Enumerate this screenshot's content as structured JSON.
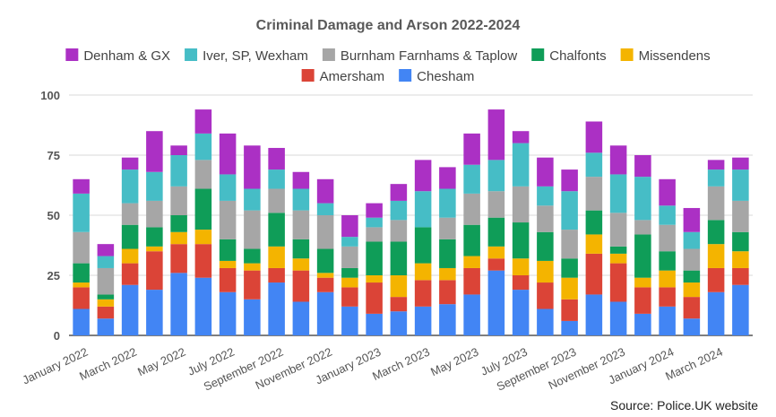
{
  "chart_data": {
    "type": "bar",
    "stacked": true,
    "title": "Criminal Damage and Arson  2022-2024",
    "source_note": "Source: Police.UK website",
    "xlabel": "",
    "ylabel": "",
    "ylim": [
      0,
      100
    ],
    "yticks": [
      0,
      25,
      50,
      75,
      100
    ],
    "grid": true,
    "legend_position": "top",
    "categories": [
      "Jan 2022",
      "Feb 2022",
      "Mar 2022",
      "Apr 2022",
      "May 2022",
      "Jun 2022",
      "Jul 2022",
      "Aug 2022",
      "Sep 2022",
      "Oct 2022",
      "Nov 2022",
      "Dec 2022",
      "Jan 2023",
      "Feb 2023",
      "Mar 2023",
      "Apr 2023",
      "May 2023",
      "Jun 2023",
      "Jul 2023",
      "Aug 2023",
      "Sep 2023",
      "Oct 2023",
      "Nov 2023",
      "Dec 2023",
      "Jan 2024",
      "Feb 2024",
      "Mar 2024",
      "Apr 2024"
    ],
    "x_tick_labels": [
      {
        "index": 0,
        "label": "January 2022"
      },
      {
        "index": 2,
        "label": "March 2022"
      },
      {
        "index": 4,
        "label": "May 2022"
      },
      {
        "index": 6,
        "label": "July 2022"
      },
      {
        "index": 8,
        "label": "September 2022"
      },
      {
        "index": 10,
        "label": "November 2022"
      },
      {
        "index": 12,
        "label": "January 2023"
      },
      {
        "index": 14,
        "label": "March 2023"
      },
      {
        "index": 16,
        "label": "May 2023"
      },
      {
        "index": 18,
        "label": "July 2023"
      },
      {
        "index": 20,
        "label": "September 2023"
      },
      {
        "index": 22,
        "label": "November 2023"
      },
      {
        "index": 24,
        "label": "January 2024"
      },
      {
        "index": 26,
        "label": "March 2024"
      }
    ],
    "series": [
      {
        "name": "Chesham",
        "color": "#4285F4",
        "values": [
          11,
          7,
          21,
          19,
          26,
          24,
          18,
          15,
          22,
          14,
          18,
          12,
          9,
          10,
          12,
          13,
          17,
          27,
          19,
          11,
          6,
          17,
          14,
          9,
          12,
          7,
          18,
          21
        ]
      },
      {
        "name": "Amersham",
        "color": "#DB4437",
        "values": [
          9,
          5,
          9,
          16,
          12,
          14,
          10,
          12,
          6,
          13,
          6,
          8,
          13,
          6,
          11,
          10,
          11,
          5,
          6,
          11,
          9,
          17,
          16,
          11,
          8,
          9,
          10,
          7
        ]
      },
      {
        "name": "Missendens",
        "color": "#F4B400",
        "values": [
          2,
          3,
          6,
          2,
          5,
          6,
          3,
          3,
          9,
          5,
          2,
          4,
          3,
          9,
          7,
          5,
          5,
          5,
          7,
          9,
          9,
          8,
          4,
          4,
          7,
          6,
          10,
          7
        ]
      },
      {
        "name": "Chalfonts",
        "color": "#0F9D58",
        "values": [
          8,
          2,
          10,
          8,
          7,
          17,
          9,
          6,
          14,
          8,
          10,
          4,
          14,
          14,
          15,
          12,
          13,
          12,
          15,
          12,
          8,
          10,
          3,
          18,
          8,
          5,
          10,
          8
        ]
      },
      {
        "name": "Burnham Farnhams & Taplow",
        "color": "#A6A6A6",
        "values": [
          13,
          11,
          9,
          11,
          12,
          12,
          16,
          16,
          10,
          12,
          14,
          9,
          6,
          9,
          0,
          9,
          13,
          11,
          15,
          11,
          12,
          14,
          14,
          6,
          11,
          9,
          14,
          13
        ]
      },
      {
        "name": "Iver, SP, Wexham",
        "color": "#46BDC6",
        "values": [
          16,
          5,
          14,
          12,
          13,
          11,
          11,
          9,
          8,
          9,
          5,
          4,
          4,
          8,
          15,
          12,
          12,
          13,
          18,
          8,
          16,
          10,
          16,
          18,
          8,
          7,
          7,
          13
        ]
      },
      {
        "name": "Denham & GX",
        "color": "#AB30C4",
        "values": [
          6,
          5,
          5,
          17,
          4,
          10,
          17,
          18,
          9,
          7,
          10,
          9,
          6,
          7,
          13,
          9,
          13,
          21,
          5,
          12,
          9,
          13,
          12,
          9,
          11,
          10,
          4,
          5
        ]
      }
    ],
    "legend_rows": [
      [
        "Denham & GX",
        "Iver, SP, Wexham",
        "Burnham Farnhams & Taplow",
        "Chalfonts",
        "Missendens"
      ],
      [
        "Amersham",
        "Chesham"
      ]
    ]
  }
}
